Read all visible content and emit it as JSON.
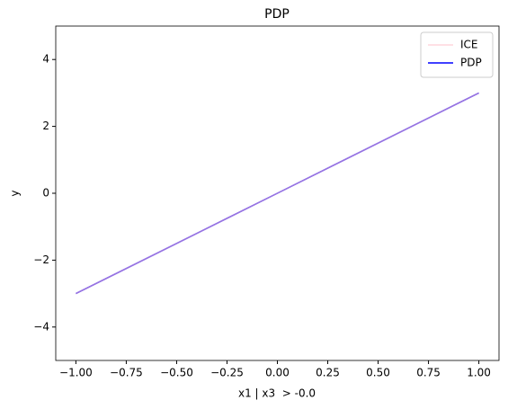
{
  "chart_data": {
    "type": "line",
    "title": "PDP",
    "xlabel": "x1 | x3  > -0.0",
    "ylabel": "y",
    "x": [
      -1,
      -0.5,
      0,
      0.5,
      1
    ],
    "series": [
      {
        "name": "ICE",
        "color": "#ffc0cb",
        "values": [
          -3,
          -1.5,
          0,
          1.5,
          3
        ]
      },
      {
        "name": "PDP",
        "color": "#0000ff",
        "values": [
          -3,
          -1.5,
          0,
          1.5,
          3
        ]
      }
    ],
    "xlim": [
      -1.1,
      1.1
    ],
    "xticks": [
      {
        "value": -1,
        "label": "−1.00"
      },
      {
        "value": -0.75,
        "label": "−0.75"
      },
      {
        "value": -0.5,
        "label": "−0.50"
      },
      {
        "value": -0.25,
        "label": "−0.25"
      },
      {
        "value": 0,
        "label": "0.00"
      },
      {
        "value": 0.25,
        "label": "0.25"
      },
      {
        "value": 0.5,
        "label": "0.50"
      },
      {
        "value": 0.75,
        "label": "0.75"
      },
      {
        "value": 1,
        "label": "1.00"
      }
    ],
    "ylim": [
      -5,
      5
    ],
    "yticks": [
      {
        "value": -4,
        "label": "−4"
      },
      {
        "value": -2,
        "label": "−2"
      },
      0,
      2,
      4
    ],
    "legend": "upper right",
    "grid": false
  }
}
